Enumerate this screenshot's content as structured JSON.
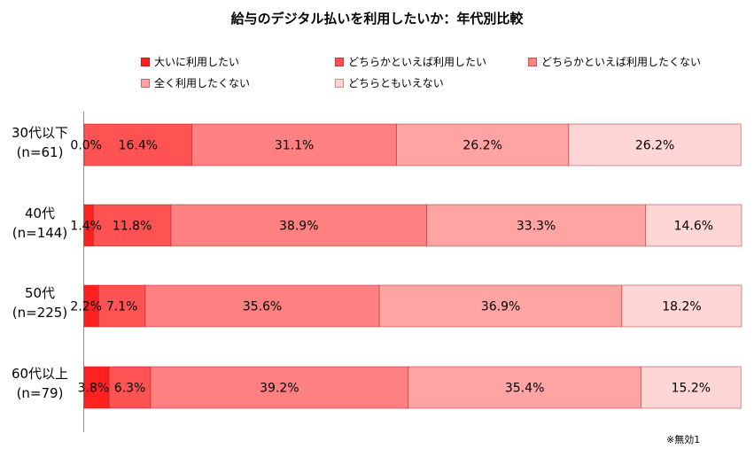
{
  "chart_data": {
    "type": "bar",
    "orientation": "horizontal-stacked-100",
    "title": "給与のデジタル払いを利用したいか：年代別比較",
    "categories": [
      {
        "label": "30代以下",
        "n": "(n=61)"
      },
      {
        "label": "40代",
        "n": "(n=144)"
      },
      {
        "label": "50代",
        "n": "(n=225)"
      },
      {
        "label": "60代以上",
        "n": "(n=79)"
      }
    ],
    "series": [
      {
        "name": "大いに利用したい",
        "color": "#ff2020",
        "values": [
          0.0,
          1.4,
          2.2,
          3.8
        ]
      },
      {
        "name": "どちらかといえば利用したい",
        "color": "#ff5252",
        "values": [
          16.4,
          11.8,
          7.1,
          6.3
        ]
      },
      {
        "name": "どちらかといえば利用したくない",
        "color": "#ff8080",
        "values": [
          31.1,
          38.9,
          35.6,
          39.2
        ]
      },
      {
        "name": "全く利用したくない",
        "color": "#ffa3a3",
        "values": [
          26.2,
          33.3,
          36.9,
          35.4
        ]
      },
      {
        "name": "どちらともいえない",
        "color": "#ffd6d6",
        "values": [
          26.2,
          14.6,
          18.2,
          15.2
        ]
      }
    ],
    "value_format": "%",
    "legend_position": "top",
    "footnote": "※無効1"
  }
}
